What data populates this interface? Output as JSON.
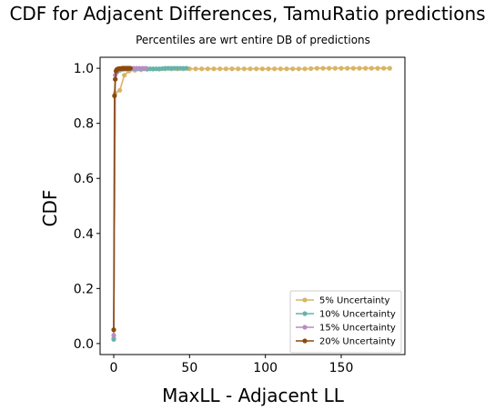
{
  "chart_data": {
    "type": "line",
    "title": "CDF for Adjacent Differences, TamuRatio predictions",
    "subtitle": "Percentiles are wrt entire DB of predictions",
    "xlabel": "MaxLL - Adjacent LL",
    "ylabel": "CDF",
    "xlim": [
      -9,
      192
    ],
    "ylim": [
      -0.04,
      1.04
    ],
    "xticks": [
      0,
      50,
      100,
      150
    ],
    "yticks": [
      0.0,
      0.2,
      0.4,
      0.6,
      0.8,
      1.0
    ],
    "xtick_labels": [
      "0",
      "50",
      "100",
      "150"
    ],
    "ytick_labels": [
      "0.0",
      "0.2",
      "0.4",
      "0.6",
      "0.8",
      "1.0"
    ],
    "grid": false,
    "legend_position": "lower-right",
    "series": [
      {
        "name": "5% Uncertainty",
        "color": "#d9b466",
        "x": [
          0,
          1,
          4,
          7,
          10,
          14,
          18,
          22,
          26,
          30,
          34,
          38,
          42,
          46,
          50,
          54,
          58,
          62,
          66,
          70,
          74,
          78,
          82,
          86,
          90,
          94,
          98,
          102,
          106,
          110,
          114,
          118,
          122,
          126,
          130,
          134,
          138,
          142,
          146,
          150,
          154,
          158,
          162,
          166,
          170,
          174,
          178,
          182
        ],
        "y": [
          0.02,
          0.91,
          0.92,
          0.975,
          0.99,
          0.993,
          0.995,
          0.996,
          0.997,
          0.997,
          0.998,
          0.998,
          0.998,
          0.998,
          0.998,
          0.998,
          0.998,
          0.998,
          0.998,
          0.998,
          0.998,
          0.998,
          0.998,
          0.998,
          0.998,
          0.998,
          0.998,
          0.998,
          0.998,
          0.998,
          0.998,
          0.998,
          0.998,
          0.998,
          0.999,
          1.0,
          1.0,
          1.0,
          1.0,
          1.0,
          1.0,
          1.0,
          1.0,
          1.0,
          1.0,
          1.0,
          1.0,
          1.0
        ]
      },
      {
        "name": "10% Uncertainty",
        "color": "#66b3aa",
        "x": [
          0,
          1,
          2,
          4,
          6,
          8,
          10,
          12,
          14,
          16,
          18,
          20,
          22,
          24,
          26,
          28,
          30,
          32,
          34,
          36,
          38,
          40,
          42,
          44,
          46,
          48
        ],
        "y": [
          0.015,
          0.96,
          0.985,
          0.993,
          0.996,
          0.997,
          0.998,
          0.998,
          0.998,
          0.998,
          0.998,
          0.998,
          0.998,
          0.998,
          0.998,
          0.998,
          0.998,
          0.999,
          1.0,
          1.0,
          1.0,
          1.0,
          1.0,
          1.0,
          1.0,
          1.0
        ]
      },
      {
        "name": "15% Uncertainty",
        "color": "#b88cc4",
        "x": [
          0,
          1,
          2,
          3,
          5,
          7,
          9,
          11,
          13,
          15,
          17,
          19,
          21
        ],
        "y": [
          0.03,
          0.975,
          0.99,
          0.995,
          0.997,
          0.998,
          0.999,
          0.999,
          1.0,
          1.0,
          1.0,
          1.0,
          1.0
        ]
      },
      {
        "name": "20% Uncertainty",
        "color": "#8c4a0c",
        "x": [
          0,
          0.5,
          1,
          1.5,
          2,
          2.5,
          3,
          3.5,
          4,
          4.5,
          5,
          5.5,
          6,
          6.5,
          7,
          7.5,
          8,
          8.5,
          9,
          9.5,
          10,
          10.5,
          11
        ],
        "y": [
          0.05,
          0.9,
          0.96,
          0.99,
          0.995,
          0.997,
          0.998,
          0.998,
          0.999,
          0.999,
          0.999,
          1.0,
          1.0,
          1.0,
          1.0,
          1.0,
          1.0,
          1.0,
          1.0,
          1.0,
          1.0,
          1.0,
          1.0
        ]
      }
    ]
  }
}
